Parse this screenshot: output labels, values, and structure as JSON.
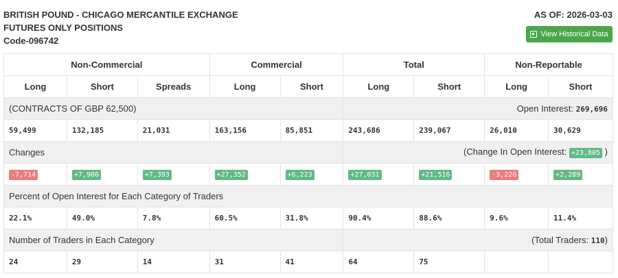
{
  "header": {
    "title1": "BRITISH POUND - CHICAGO MERCANTILE EXCHANGE",
    "title2": "FUTURES ONLY POSITIONS",
    "code": "Code-096742",
    "as_of": "AS OF: 2026-03-03",
    "button": "View Historical Data"
  },
  "groups": [
    "Non-Commercial",
    "Commercial",
    "Total",
    "Non-Reportable"
  ],
  "subheaders": [
    "Long",
    "Short",
    "Spreads",
    "Long",
    "Short",
    "Long",
    "Short",
    "Long",
    "Short"
  ],
  "contracts_label": "(CONTRACTS OF GBP 62,500)",
  "open_interest_label": "Open Interest:",
  "open_interest": "269,696",
  "positions": [
    "59,499",
    "132,185",
    "21,031",
    "163,156",
    "85,851",
    "243,686",
    "239,067",
    "26,010",
    "30,629"
  ],
  "changes_label": "Changes",
  "change_oi_label": "(Change In Open Interest:",
  "change_oi": "+23,805",
  "change_oi_close": ")",
  "changes": [
    "-7,714",
    "+7,900",
    "+7,393",
    "+27,352",
    "+6,223",
    "+27,031",
    "+21,516",
    "-3,226",
    "+2,289"
  ],
  "percent_label": "Percent of Open Interest for Each Category of Traders",
  "percents": [
    "22.1%",
    "49.0%",
    "7.8%",
    "60.5%",
    "31.8%",
    "90.4%",
    "88.6%",
    "9.6%",
    "11.4%"
  ],
  "traders_label": "Number of Traders in Each Category",
  "total_traders_label": "(Total Traders:",
  "total_traders": "110",
  "total_traders_close": ")",
  "traders": [
    "24",
    "29",
    "14",
    "31",
    "41",
    "64",
    "75",
    "",
    ""
  ],
  "colors": {
    "positive": "#62b986",
    "negative": "#ef7b7b",
    "button": "#4aa64a"
  }
}
